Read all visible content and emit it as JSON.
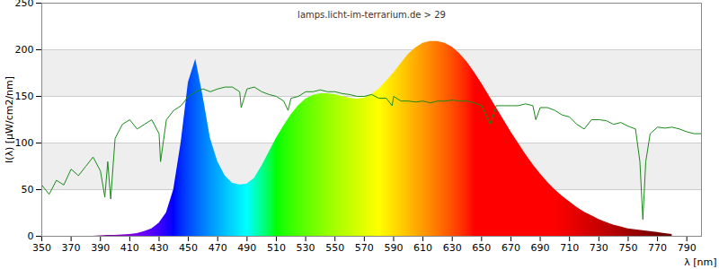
{
  "chart_data": {
    "type": "area",
    "title": "lamps.licht-im-terrarium.de > 29",
    "x_label": "λ [nm]",
    "y_label": "I(λ) [µW/cm2/nm]",
    "xlim": [
      350,
      800
    ],
    "xticks": [
      350,
      370,
      390,
      410,
      430,
      450,
      470,
      490,
      510,
      530,
      550,
      570,
      590,
      610,
      630,
      650,
      670,
      690,
      710,
      730,
      750,
      770,
      790
    ],
    "ylim": [
      0,
      250
    ],
    "yticks": [
      0,
      50,
      100,
      150,
      200,
      250
    ],
    "grid": true,
    "series": [
      {
        "type": "area",
        "color": "wavelength",
        "x": [
          380,
          385,
          390,
          395,
          400,
          405,
          410,
          415,
          420,
          425,
          430,
          435,
          440,
          445,
          450,
          455,
          460,
          465,
          470,
          475,
          480,
          485,
          490,
          495,
          500,
          505,
          510,
          515,
          520,
          525,
          530,
          535,
          540,
          545,
          550,
          555,
          560,
          565,
          570,
          575,
          580,
          585,
          590,
          595,
          600,
          605,
          610,
          615,
          620,
          625,
          630,
          635,
          640,
          645,
          650,
          655,
          660,
          665,
          670,
          675,
          680,
          685,
          690,
          695,
          700,
          705,
          710,
          715,
          720,
          725,
          730,
          735,
          740,
          745,
          750,
          755,
          760,
          765,
          770,
          775,
          780
        ],
        "values": [
          0,
          0,
          0.5,
          1,
          1,
          1.5,
          2,
          3,
          5,
          8,
          14,
          25,
          50,
          100,
          165,
          190,
          150,
          105,
          80,
          65,
          57,
          55,
          56,
          62,
          75,
          90,
          105,
          118,
          130,
          140,
          147,
          151,
          153,
          153,
          152,
          150,
          148,
          147,
          148,
          152,
          158,
          166,
          175,
          185,
          195,
          202,
          207,
          209,
          209,
          207,
          203,
          196,
          187,
          176,
          164,
          151,
          138,
          125,
          112,
          100,
          88,
          77,
          67,
          58,
          50,
          43,
          37,
          31,
          26,
          22,
          18,
          15,
          12,
          10,
          8,
          7,
          6,
          5,
          4,
          3,
          2
        ]
      },
      {
        "type": "line",
        "color": "#1a8a1a",
        "x": [
          350,
          355,
          360,
          365,
          370,
          375,
          380,
          385,
          390,
          393,
          395,
          397,
          400,
          405,
          410,
          415,
          420,
          425,
          430,
          431,
          435,
          440,
          445,
          450,
          455,
          460,
          465,
          470,
          475,
          480,
          485,
          486,
          490,
          495,
          500,
          505,
          510,
          515,
          518,
          520,
          525,
          530,
          535,
          540,
          545,
          550,
          555,
          560,
          565,
          570,
          575,
          580,
          585,
          589,
          590,
          595,
          600,
          605,
          610,
          615,
          620,
          625,
          630,
          635,
          640,
          645,
          650,
          656,
          660,
          665,
          670,
          675,
          680,
          685,
          687,
          690,
          695,
          700,
          705,
          710,
          715,
          720,
          725,
          730,
          735,
          740,
          745,
          750,
          755,
          758,
          760,
          762,
          765,
          770,
          775,
          780,
          785,
          790,
          795,
          800
        ],
        "values": [
          55,
          45,
          60,
          55,
          72,
          65,
          75,
          85,
          70,
          42,
          80,
          40,
          105,
          120,
          125,
          115,
          120,
          125,
          110,
          80,
          125,
          135,
          140,
          150,
          155,
          158,
          155,
          158,
          160,
          160,
          155,
          138,
          158,
          160,
          155,
          152,
          150,
          145,
          135,
          148,
          150,
          155,
          155,
          157,
          155,
          155,
          153,
          152,
          150,
          150,
          152,
          148,
          148,
          140,
          150,
          145,
          145,
          144,
          145,
          143,
          145,
          145,
          146,
          145,
          145,
          143,
          140,
          120,
          140,
          140,
          140,
          140,
          142,
          140,
          125,
          138,
          138,
          135,
          130,
          128,
          120,
          115,
          125,
          125,
          124,
          120,
          122,
          118,
          115,
          80,
          18,
          80,
          110,
          117,
          116,
          117,
          115,
          112,
          110,
          110
        ]
      }
    ]
  }
}
